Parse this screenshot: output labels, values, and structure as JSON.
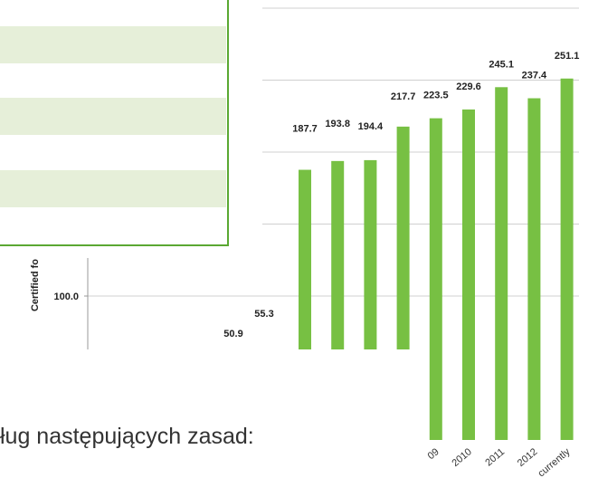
{
  "chart_data": {
    "type": "bar",
    "y_label": "Certified fo",
    "categories": [
      null,
      null,
      null,
      null,
      "09",
      "2010",
      "2011",
      "2012",
      "currently"
    ],
    "values": [
      187.7,
      193.8,
      194.4,
      217.7,
      223.5,
      229.6,
      245.1,
      237.4,
      251.1
    ],
    "other_value_labels": [
      50.9,
      55.3
    ],
    "color": "#77c043",
    "ylim": [
      0,
      300
    ],
    "yticks": [
      {
        "value": 100,
        "label": "100.0"
      }
    ],
    "gridlines": [
      100,
      150,
      200,
      250,
      300
    ]
  },
  "text": "ług następujących zasad:"
}
